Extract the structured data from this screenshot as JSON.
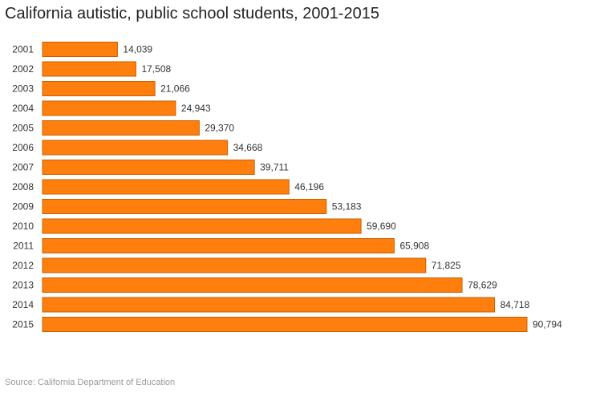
{
  "chart_data": {
    "type": "bar",
    "orientation": "horizontal",
    "title": "California autistic, public school students, 2001-2015",
    "categories": [
      "2001",
      "2002",
      "2003",
      "2004",
      "2005",
      "2006",
      "2007",
      "2008",
      "2009",
      "2010",
      "2011",
      "2012",
      "2013",
      "2014",
      "2015"
    ],
    "values": [
      14039,
      17508,
      21066,
      24943,
      29370,
      34668,
      39711,
      46196,
      53183,
      59690,
      65908,
      71825,
      78629,
      84718,
      90794
    ],
    "data_labels": [
      "14,039",
      "17,508",
      "21,066",
      "24,943",
      "29,370",
      "34,668",
      "39,711",
      "46,196",
      "53,183",
      "59,690",
      "65,908",
      "71,825",
      "78,629",
      "84,718",
      "90,794"
    ],
    "xlim": [
      0,
      90794
    ],
    "grid": false,
    "legend": "none",
    "bar_color": "#ff7f0e",
    "bar_edge_color": "#c85f00",
    "source": "Source: California Department of Education"
  }
}
